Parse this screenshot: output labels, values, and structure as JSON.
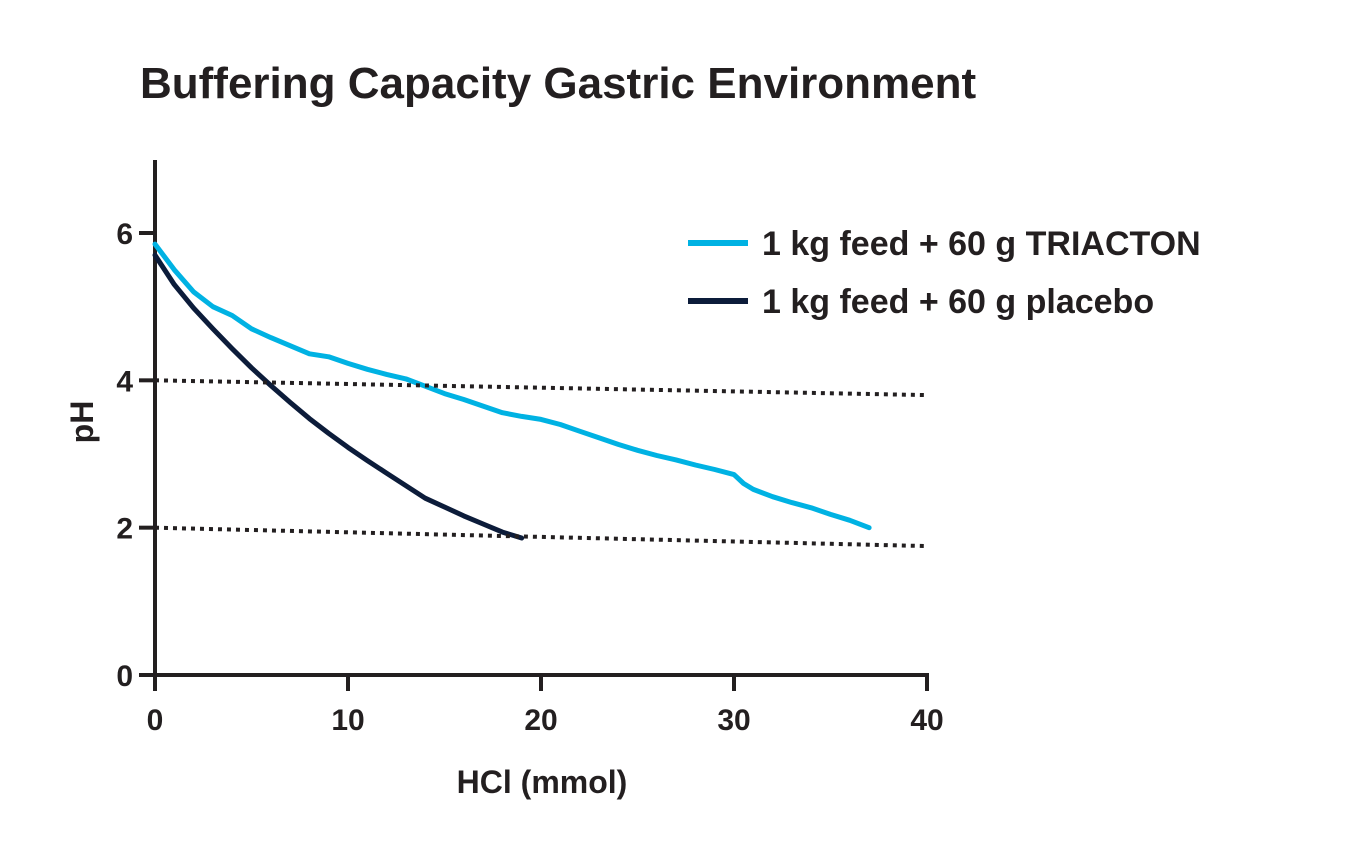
{
  "chart_data": {
    "type": "line",
    "title": "Buffering Capacity Gastric Environment",
    "xlabel": "HCl (mmol)",
    "ylabel": "pH",
    "xlim": [
      0,
      40
    ],
    "ylim": [
      0,
      7
    ],
    "x_ticks": [
      0,
      10,
      20,
      30,
      40
    ],
    "y_ticks": [
      0,
      2,
      4,
      6
    ],
    "x_tick_labels": [
      "0",
      "10",
      "20",
      "30",
      "40"
    ],
    "y_tick_labels": [
      "0",
      "2",
      "4",
      "6"
    ],
    "grid": false,
    "legend_position": "top-right",
    "series": [
      {
        "name": "1 kg feed + 60 g TRIACTON",
        "color": "#00b2e3",
        "style": "solid",
        "x": [
          0,
          1,
          2,
          3,
          4,
          5,
          6,
          7,
          8,
          9,
          10,
          11,
          12,
          13,
          14,
          15,
          16,
          17,
          18,
          19,
          20,
          21,
          22,
          23,
          24,
          25,
          26,
          27,
          28,
          29,
          30,
          30.5,
          31,
          32,
          33,
          34,
          35,
          36,
          37
        ],
        "y": [
          5.85,
          5.5,
          5.2,
          5.0,
          4.88,
          4.7,
          4.58,
          4.47,
          4.36,
          4.32,
          4.23,
          4.15,
          4.08,
          4.02,
          3.92,
          3.82,
          3.74,
          3.65,
          3.56,
          3.51,
          3.47,
          3.4,
          3.31,
          3.22,
          3.13,
          3.05,
          2.98,
          2.92,
          2.85,
          2.79,
          2.72,
          2.6,
          2.52,
          2.42,
          2.34,
          2.27,
          2.18,
          2.1,
          2.0
        ]
      },
      {
        "name": "1 kg feed + 60 g placebo",
        "color": "#0c1c3a",
        "style": "solid",
        "x": [
          0,
          1,
          2,
          3,
          4,
          5,
          6,
          7,
          8,
          9,
          10,
          11,
          12,
          13,
          14,
          15,
          16,
          17,
          18,
          19
        ],
        "y": [
          5.7,
          5.3,
          4.98,
          4.7,
          4.43,
          4.17,
          3.93,
          3.7,
          3.48,
          3.28,
          3.09,
          2.91,
          2.74,
          2.57,
          2.4,
          2.28,
          2.16,
          2.05,
          1.94,
          1.86
        ]
      },
      {
        "name": "",
        "color": "#231f20",
        "style": "dotted",
        "x": [
          0,
          40
        ],
        "y": [
          4.0,
          3.8
        ]
      },
      {
        "name": "",
        "color": "#231f20",
        "style": "dotted",
        "x": [
          0,
          40
        ],
        "y": [
          2.0,
          1.75
        ]
      }
    ]
  }
}
